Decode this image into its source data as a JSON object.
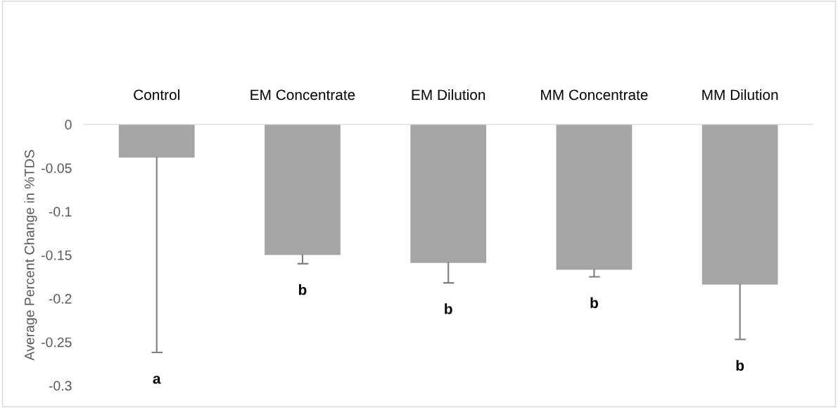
{
  "chart_data": {
    "type": "bar",
    "ylabel": "Average Percent Change in %TDS",
    "categories": [
      "Control",
      "EM Concentrate",
      "EM Dilution",
      "MM Concentrate",
      "MM Dilution"
    ],
    "values": [
      -0.038,
      -0.15,
      -0.159,
      -0.167,
      -0.184
    ],
    "errors": [
      [
        -0.262,
        -0.038
      ],
      [
        -0.16,
        -0.15
      ],
      [
        -0.182,
        -0.159
      ],
      [
        -0.175,
        -0.167
      ],
      [
        -0.247,
        -0.184
      ]
    ],
    "color": "#a5a5a5",
    "ylim": [
      -0.3,
      0
    ],
    "yticks": [
      -0.3,
      -0.25,
      -0.2,
      -0.15,
      -0.1,
      -0.05,
      0
    ],
    "grid": false,
    "annotations": [
      "a",
      "b",
      "b",
      "b",
      "b"
    ]
  }
}
